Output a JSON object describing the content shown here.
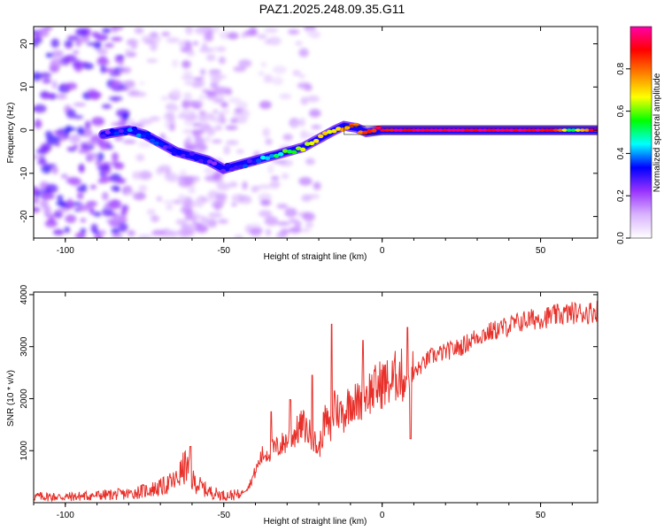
{
  "title": "PAZ1.2025.248.09.35.G11",
  "chart_data": [
    {
      "type": "heatmap",
      "xlabel": "Height of straight line (km)",
      "ylabel": "Frequency (Hz)",
      "xlim": [
        -110,
        68
      ],
      "ylim": [
        -25,
        24
      ],
      "xticks": [
        -100,
        -50,
        0,
        50
      ],
      "yticks": [
        -20,
        -10,
        0,
        10,
        20
      ],
      "colorbar": {
        "label": "Normalized spectral amplitude",
        "range": [
          0,
          1
        ],
        "ticks": [
          "0.0",
          "0.2",
          "0.4",
          "0.6",
          "0.8"
        ],
        "tick_values": [
          0.0,
          0.2,
          0.4,
          0.6,
          0.8
        ],
        "colors": [
          "#ffffff",
          "#d9b3ff",
          "#9933ff",
          "#0000ff",
          "#00ffff",
          "#00ff00",
          "#ffff00",
          "#ff8000",
          "#ff0000",
          "#ff00aa"
        ]
      },
      "ridge": {
        "description": "Dominant frequency track vs height",
        "points": [
          {
            "x": -88,
            "freq": -1,
            "amp": 0.25
          },
          {
            "x": -80,
            "freq": 0,
            "amp": 0.35
          },
          {
            "x": -75,
            "freq": -1,
            "amp": 0.35
          },
          {
            "x": -70,
            "freq": -3,
            "amp": 0.3
          },
          {
            "x": -65,
            "freq": -5,
            "amp": 0.3
          },
          {
            "x": -60,
            "freq": -6,
            "amp": 0.3
          },
          {
            "x": -55,
            "freq": -7,
            "amp": 0.25
          },
          {
            "x": -50,
            "freq": -9,
            "amp": 0.3
          },
          {
            "x": -45,
            "freq": -8,
            "amp": 0.3
          },
          {
            "x": -40,
            "freq": -7,
            "amp": 0.35
          },
          {
            "x": -35,
            "freq": -6,
            "amp": 0.45
          },
          {
            "x": -30,
            "freq": -5,
            "amp": 0.55
          },
          {
            "x": -25,
            "freq": -4,
            "amp": 0.6
          },
          {
            "x": -20,
            "freq": -2,
            "amp": 0.65
          },
          {
            "x": -15,
            "freq": 0,
            "amp": 0.7
          },
          {
            "x": -12,
            "freq": 1,
            "amp": 0.75
          },
          {
            "x": -8,
            "freq": 0.5,
            "amp": 0.8
          },
          {
            "x": -5,
            "freq": -0.5,
            "amp": 0.85
          },
          {
            "x": 0,
            "freq": 0,
            "amp": 0.9
          },
          {
            "x": 10,
            "freq": 0,
            "amp": 0.95
          },
          {
            "x": 25,
            "freq": 0,
            "amp": 0.95
          },
          {
            "x": 40,
            "freq": 0,
            "amp": 0.95
          },
          {
            "x": 55,
            "freq": 0,
            "amp": 0.9
          },
          {
            "x": 60,
            "freq": 0,
            "amp": 0.5
          },
          {
            "x": 68,
            "freq": 0,
            "amp": 0.95
          }
        ]
      }
    },
    {
      "type": "line",
      "xlabel": "Height of straight line (km)",
      "ylabel": "SNR (10 * v/v)",
      "xlim": [
        -110,
        68
      ],
      "ylim": [
        0,
        4050
      ],
      "xticks": [
        -100,
        -50,
        0,
        50
      ],
      "yticks": [
        1000,
        2000,
        3000,
        4000
      ],
      "series": [
        {
          "name": "SNR",
          "color": "#e8302a",
          "x": [
            -110,
            -100,
            -90,
            -80,
            -75,
            -70,
            -65,
            -62,
            -60,
            -55,
            -50,
            -45,
            -42,
            -40,
            -38,
            -35,
            -32,
            -30,
            -28,
            -25,
            -22,
            -20,
            -18,
            -16,
            -15,
            -12,
            -10,
            -8,
            -5,
            -2,
            0,
            3,
            5,
            8,
            10,
            12,
            15,
            20,
            25,
            30,
            35,
            40,
            45,
            50,
            55,
            60,
            65,
            68
          ],
          "values": [
            120,
            110,
            140,
            170,
            230,
            290,
            430,
            720,
            430,
            220,
            140,
            150,
            330,
            600,
            900,
            1000,
            1100,
            1200,
            1300,
            1500,
            1250,
            1000,
            1600,
            1350,
            1800,
            1700,
            2000,
            1900,
            2100,
            2200,
            2300,
            2300,
            2500,
            2350,
            2500,
            2600,
            2800,
            2900,
            3000,
            3200,
            3300,
            3400,
            3500,
            3550,
            3600,
            3650,
            3650,
            3700
          ],
          "peaks": [
            {
              "x": -60.5,
              "value": 1080
            },
            {
              "x": -35,
              "value": 1750
            },
            {
              "x": -29,
              "value": 1980
            },
            {
              "x": -22,
              "value": 2450
            },
            {
              "x": -16,
              "value": 3430
            },
            {
              "x": -15,
              "value": 2150
            },
            {
              "x": -6,
              "value": 3120
            },
            {
              "x": 8,
              "value": 3370
            },
            {
              "x": 9,
              "value": 1230
            }
          ]
        }
      ]
    }
  ]
}
